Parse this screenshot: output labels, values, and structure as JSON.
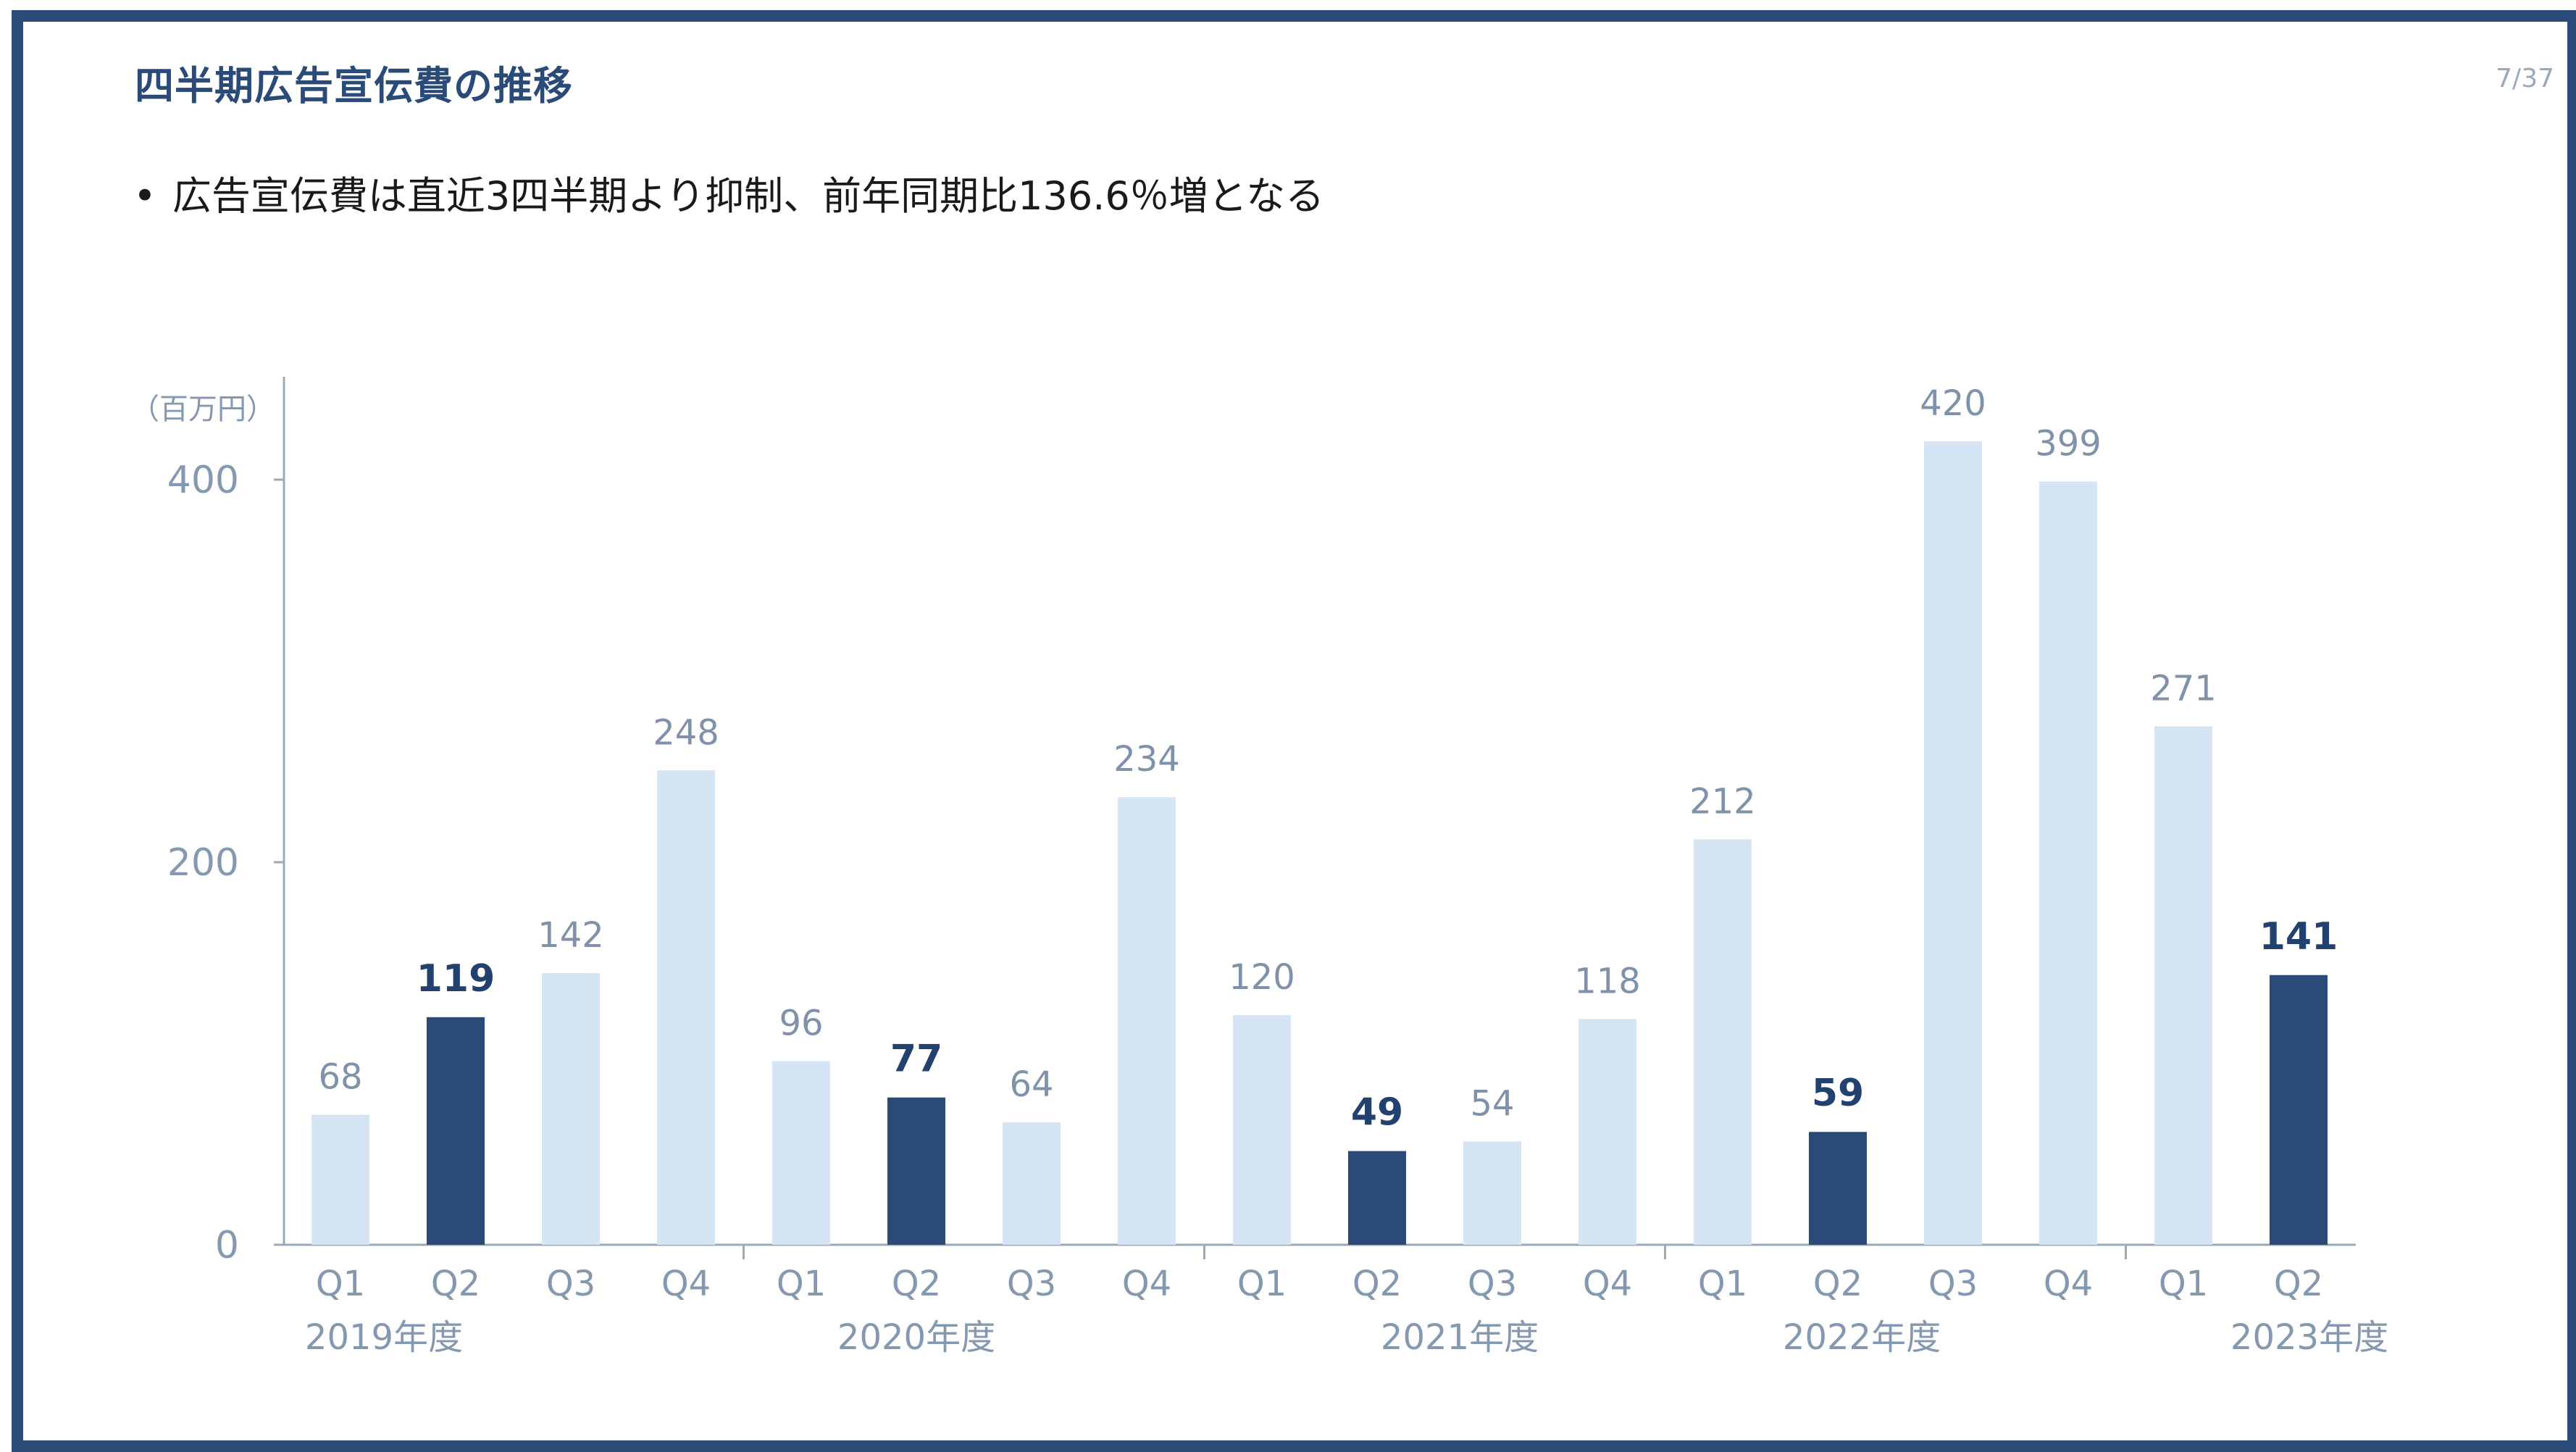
{
  "slide": {
    "title": "四半期広告宣伝費の推移",
    "page": "7/37",
    "bullet": "広告宣伝費は直近3四半期より抑制、前年同期比136.6％増となる"
  },
  "colors": {
    "border": "#2a4a78",
    "title": "#2a4a78",
    "bar_light": "#d5e5f4",
    "bar_dark": "#2a4a78",
    "axis_text": "#8498b0",
    "label_light": "#7f92a9",
    "label_dark": "#23416e"
  },
  "chart_data": {
    "type": "bar",
    "unit_label": "（百万円）",
    "ylim": [
      0,
      450
    ],
    "yticks": [
      0,
      200,
      400
    ],
    "categories": [
      "Q1",
      "Q2",
      "Q3",
      "Q4",
      "Q1",
      "Q2",
      "Q3",
      "Q4",
      "Q1",
      "Q2",
      "Q3",
      "Q4",
      "Q1",
      "Q2",
      "Q3",
      "Q4",
      "Q1",
      "Q2"
    ],
    "values": [
      68,
      119,
      142,
      248,
      96,
      77,
      64,
      234,
      120,
      49,
      54,
      118,
      212,
      59,
      420,
      399,
      271,
      141
    ],
    "highlighted": [
      false,
      true,
      false,
      false,
      false,
      true,
      false,
      false,
      false,
      true,
      false,
      false,
      false,
      true,
      false,
      false,
      false,
      true
    ],
    "fiscal_years": [
      {
        "label": "2019年度",
        "start": 0,
        "count": 4
      },
      {
        "label": "2020年度",
        "start": 4,
        "count": 4
      },
      {
        "label": "2021年度",
        "start": 8,
        "count": 4
      },
      {
        "label": "2022年度",
        "start": 12,
        "count": 4
      },
      {
        "label": "2023年度",
        "start": 16,
        "count": 2
      }
    ],
    "grid": false,
    "legend": "none"
  }
}
